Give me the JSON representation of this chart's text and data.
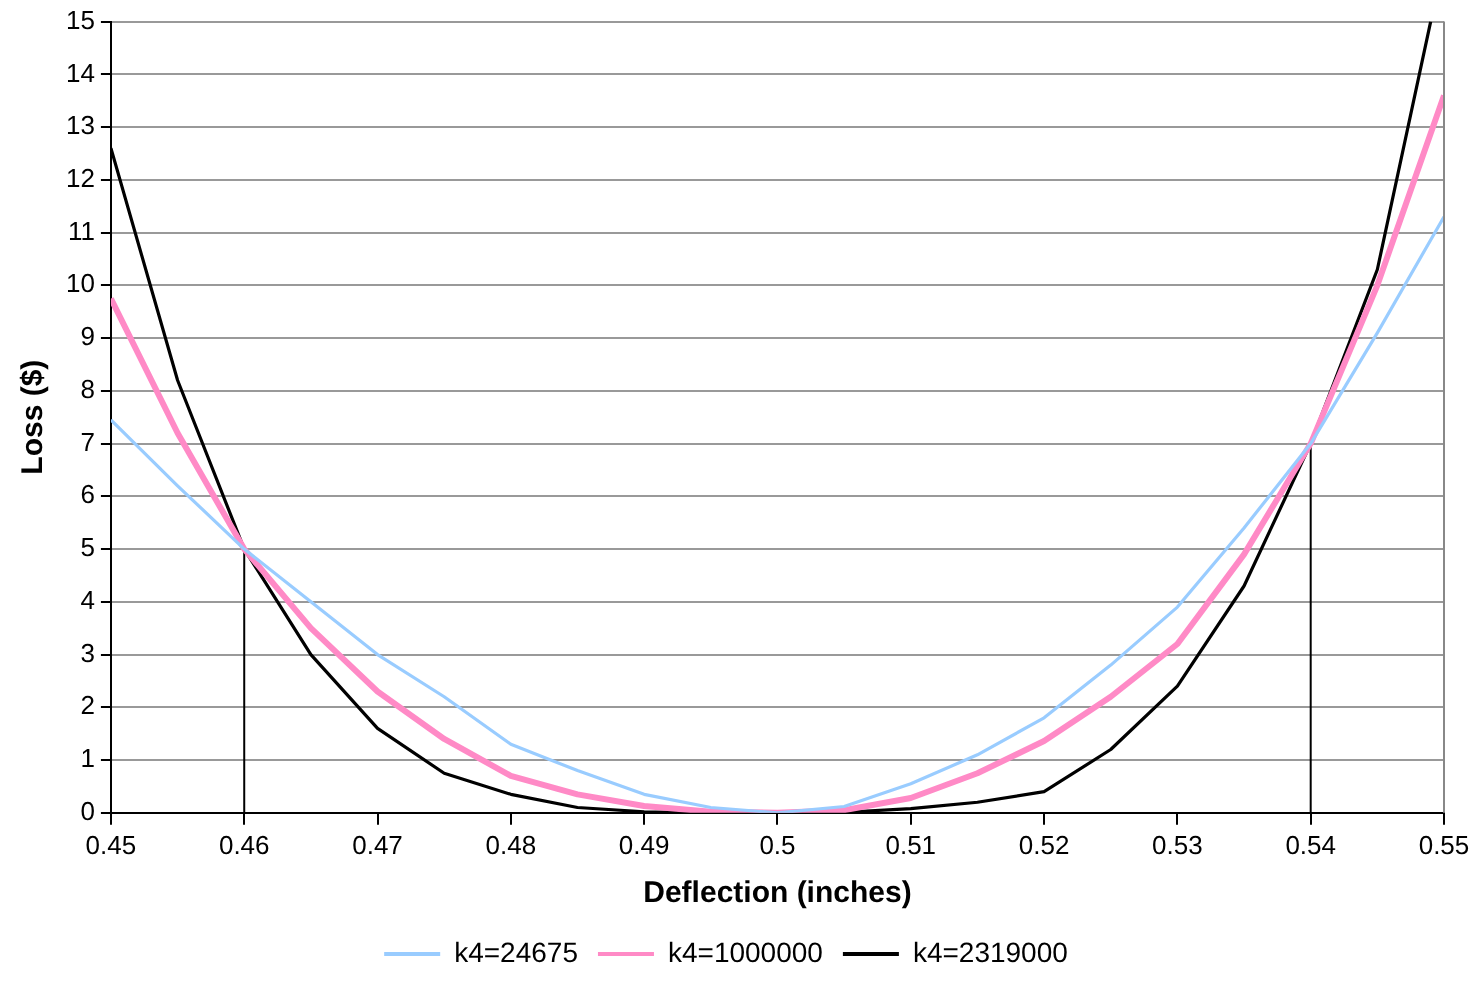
{
  "chart_data": {
    "type": "line",
    "xlabel": "Deflection (inches)",
    "ylabel": "Loss ($)",
    "xlim": [
      0.45,
      0.55
    ],
    "xticks": [
      0.45,
      0.46,
      0.47,
      0.48,
      0.49,
      0.5,
      0.51,
      0.52,
      0.53,
      0.54,
      0.55
    ],
    "ylim": [
      0,
      15
    ],
    "yticks": [
      0,
      1,
      2,
      3,
      4,
      5,
      6,
      7,
      8,
      9,
      10,
      11,
      12,
      13,
      14,
      15
    ],
    "grid": "y",
    "legend": "bottom",
    "marker": "none",
    "line_style": "solid",
    "x": [
      0.45,
      0.455,
      0.46,
      0.465,
      0.47,
      0.475,
      0.48,
      0.485,
      0.49,
      0.495,
      0.5,
      0.505,
      0.51,
      0.515,
      0.52,
      0.525,
      0.53,
      0.535,
      0.54,
      0.545,
      0.55
    ],
    "series": [
      {
        "name": "k4=24675",
        "color": "#99ccff",
        "values": [
          7.45,
          6.2,
          5,
          4.0,
          3.0,
          2.2,
          1.3,
          0.8,
          0.35,
          0.1,
          0,
          0.12,
          0.55,
          1.1,
          1.8,
          2.8,
          3.9,
          5.4,
          7,
          9.1,
          11.3
        ]
      },
      {
        "name": "k4=1000000",
        "color": "#ff8ac6",
        "values": [
          9.75,
          7.2,
          5,
          3.5,
          2.3,
          1.4,
          0.7,
          0.35,
          0.13,
          0.02,
          0,
          0.05,
          0.28,
          0.75,
          1.36,
          2.2,
          3.2,
          4.9,
          7,
          10,
          13.6
        ]
      },
      {
        "name": "k4=2319000",
        "color": "#000000",
        "x": [
          0.45,
          0.455,
          0.46,
          0.465,
          0.47,
          0.475,
          0.48,
          0.485,
          0.49,
          0.495,
          0.5,
          0.505,
          0.51,
          0.515,
          0.52,
          0.525,
          0.53,
          0.535,
          0.54,
          0.545,
          0.549
        ],
        "values": [
          12.6,
          8.2,
          5,
          3.0,
          1.6,
          0.75,
          0.35,
          0.1,
          0.02,
          0,
          0,
          0.01,
          0.08,
          0.2,
          0.4,
          1.2,
          2.4,
          4.3,
          7,
          10.3,
          15
        ]
      },
      {
        "color": "#000000",
        "x": [
          0.46,
          0.46
        ],
        "values": [
          0,
          5
        ]
      },
      {
        "color": "#000000",
        "x": [
          0.54,
          0.54
        ],
        "values": [
          0,
          7
        ]
      }
    ]
  }
}
